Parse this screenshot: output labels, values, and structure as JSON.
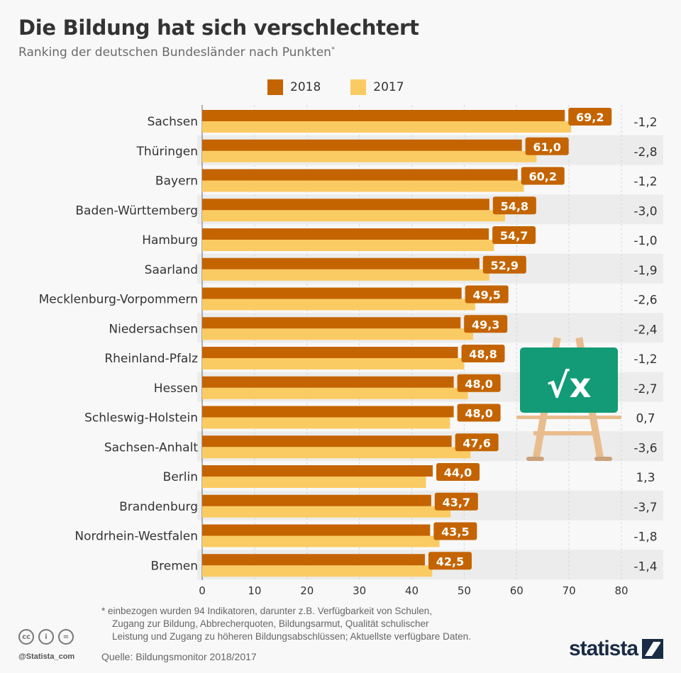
{
  "title": "Die Bildung hat sich verschlechtert",
  "subtitle": "Ranking der deutschen Bundesländer nach Punkten",
  "subtitle_mark": "*",
  "colors": {
    "2018": "#c46400",
    "2017": "#fbcb63",
    "stripe": "#ececec",
    "board": "#129b76",
    "easel": "#e8bc8c"
  },
  "chart_data": {
    "type": "bar",
    "orientation": "horizontal",
    "categories": [
      "Sachsen",
      "Thüringen",
      "Bayern",
      "Baden-Württemberg",
      "Hamburg",
      "Saarland",
      "Mecklenburg-Vorpommern",
      "Niedersachsen",
      "Rheinland-Pfalz",
      "Hessen",
      "Schleswig-Holstein",
      "Sachsen-Anhalt",
      "Berlin",
      "Brandenburg",
      "Nordrhein-Westfalen",
      "Bremen"
    ],
    "series": [
      {
        "name": "2018",
        "values": [
          69.2,
          61.0,
          60.2,
          54.8,
          54.7,
          52.9,
          49.5,
          49.3,
          48.8,
          48.0,
          48.0,
          47.6,
          44.0,
          43.7,
          43.5,
          42.5
        ],
        "labels": [
          "69,2",
          "61,0",
          "60,2",
          "54,8",
          "54,7",
          "52,9",
          "49,5",
          "49,3",
          "48,8",
          "48,0",
          "48,0",
          "47,6",
          "44,0",
          "43,7",
          "43,5",
          "42,5"
        ]
      },
      {
        "name": "2017",
        "values": [
          70.4,
          63.8,
          61.4,
          57.8,
          55.7,
          54.8,
          52.1,
          51.7,
          50.0,
          50.7,
          47.3,
          51.2,
          42.7,
          47.4,
          45.3,
          43.9
        ]
      }
    ],
    "change_labels": [
      "-1,2",
      "-2,8",
      "-1,2",
      "-3,0",
      "-1,0",
      "-1,9",
      "-2,6",
      "-2,4",
      "-1,2",
      "-2,7",
      "0,7",
      "-3,6",
      "1,3",
      "-3,7",
      "-1,8",
      "-1,4"
    ],
    "xlim": [
      0,
      80
    ],
    "xticks": [
      0,
      10,
      20,
      30,
      40,
      50,
      60,
      70,
      80
    ],
    "grid": true,
    "legend": "top"
  },
  "icon": "chalkboard-sqrt-x-icon",
  "board_text": "√x",
  "footnote": [
    "* einbezogen wurden 94 Indikatoren, darunter z.B. Verfügbarkeit von Schulen,",
    "Zugang zur Bildung, Abbrecherquoten, Bildungsarmut, Qualität schulischer",
    "Leistung und Zugang zu höheren Bildungsabschlüssen; Aktuellste verfügbare Daten."
  ],
  "source": "Quelle: Bildungsmonitor 2018/2017",
  "handle": "@Statista_com",
  "cc_icons": [
    "cc",
    "i",
    "="
  ],
  "logo": "statista"
}
